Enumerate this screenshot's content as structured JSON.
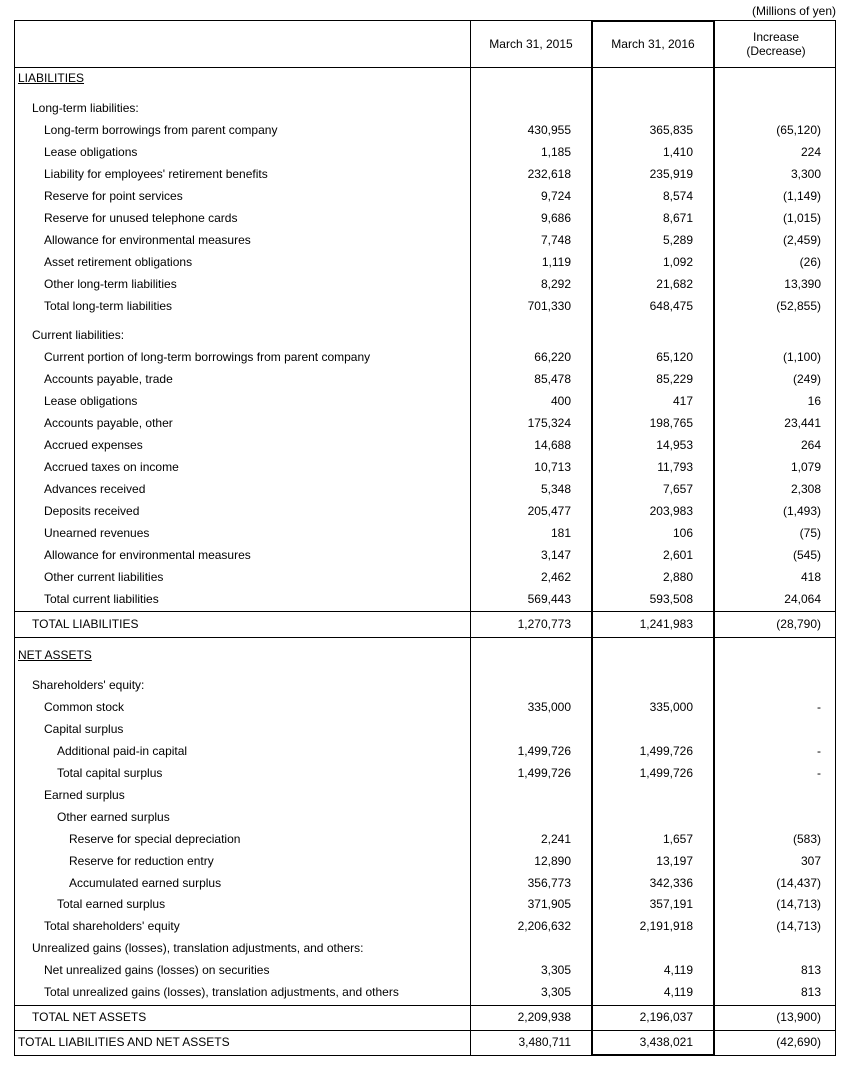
{
  "unit_note": "(Millions of yen)",
  "table": {
    "header": [
      "March 31, 2015",
      "March 31, 2016",
      [
        "Increase",
        "(Decrease)"
      ]
    ],
    "rows": [
      {
        "label": "LIABILITIES"
      },
      {
        "label": "Long-term liabilities:"
      },
      {
        "label": "Long-term borrowings from parent company",
        "values": [
          "430,955",
          "365,835",
          "(65,120)"
        ]
      },
      {
        "label": "Lease obligations",
        "values": [
          "1,185",
          "1,410",
          "224"
        ]
      },
      {
        "label": "Liability for employees' retirement benefits",
        "values": [
          "232,618",
          "235,919",
          "3,300"
        ]
      },
      {
        "label": "Reserve for point services",
        "values": [
          "9,724",
          "8,574",
          "(1,149)"
        ]
      },
      {
        "label": "Reserve for unused telephone cards",
        "values": [
          "9,686",
          "8,671",
          "(1,015)"
        ]
      },
      {
        "label": "Allowance for environmental measures",
        "values": [
          "7,748",
          "5,289",
          "(2,459)"
        ]
      },
      {
        "label": "Asset retirement obligations",
        "values": [
          "1,119",
          "1,092",
          "(26)"
        ]
      },
      {
        "label": "Other long-term liabilities",
        "values": [
          "8,292",
          "21,682",
          "13,390"
        ]
      },
      {
        "label": "Total long-term liabilities",
        "values": [
          "701,330",
          "648,475",
          "(52,855)"
        ]
      },
      {
        "label": "Current liabilities:"
      },
      {
        "label": "Current portion of long-term borrowings from parent company",
        "values": [
          "66,220",
          "65,120",
          "(1,100)"
        ]
      },
      {
        "label": "Accounts payable, trade",
        "values": [
          "85,478",
          "85,229",
          "(249)"
        ]
      },
      {
        "label": "Lease obligations",
        "values": [
          "400",
          "417",
          "16"
        ]
      },
      {
        "label": "Accounts payable, other",
        "values": [
          "175,324",
          "198,765",
          "23,441"
        ]
      },
      {
        "label": "Accrued expenses",
        "values": [
          "14,688",
          "14,953",
          "264"
        ]
      },
      {
        "label": "Accrued taxes on income",
        "values": [
          "10,713",
          "11,793",
          "1,079"
        ]
      },
      {
        "label": "Advances received",
        "values": [
          "5,348",
          "7,657",
          "2,308"
        ]
      },
      {
        "label": "Deposits received",
        "values": [
          "205,477",
          "203,983",
          "(1,493)"
        ]
      },
      {
        "label": "Unearned revenues",
        "values": [
          "181",
          "106",
          "(75)"
        ]
      },
      {
        "label": "Allowance for environmental measures",
        "values": [
          "3,147",
          "2,601",
          "(545)"
        ]
      },
      {
        "label": "Other current liabilities",
        "values": [
          "2,462",
          "2,880",
          "418"
        ]
      },
      {
        "label": "Total current liabilities",
        "values": [
          "569,443",
          "593,508",
          "24,064"
        ]
      },
      {
        "label": "TOTAL LIABILITIES",
        "values": [
          "1,270,773",
          "1,241,983",
          "(28,790)"
        ]
      },
      {
        "label": "NET ASSETS"
      },
      {
        "label": "Shareholders' equity:"
      },
      {
        "label": "Common stock",
        "values": [
          "335,000",
          "335,000",
          "-"
        ]
      },
      {
        "label": "Capital surplus"
      },
      {
        "label": "Additional paid-in capital",
        "values": [
          "1,499,726",
          "1,499,726",
          "-"
        ]
      },
      {
        "label": "Total capital surplus",
        "values": [
          "1,499,726",
          "1,499,726",
          "-"
        ]
      },
      {
        "label": "Earned surplus"
      },
      {
        "label": "Other earned surplus"
      },
      {
        "label": "Reserve for special depreciation",
        "values": [
          "2,241",
          "1,657",
          "(583)"
        ]
      },
      {
        "label": "Reserve for reduction entry",
        "values": [
          "12,890",
          "13,197",
          "307"
        ]
      },
      {
        "label": "Accumulated earned surplus",
        "values": [
          "356,773",
          "342,336",
          "(14,437)"
        ]
      },
      {
        "label": "Total earned surplus",
        "values": [
          "371,905",
          "357,191",
          "(14,713)"
        ]
      },
      {
        "label": "Total shareholders' equity",
        "values": [
          "2,206,632",
          "2,191,918",
          "(14,713)"
        ]
      },
      {
        "label": "Unrealized gains (losses), translation adjustments, and others:"
      },
      {
        "label": "Net unrealized gains (losses) on securities",
        "values": [
          "3,305",
          "4,119",
          "813"
        ]
      },
      {
        "label": "Total unrealized gains (losses), translation adjustments, and others",
        "values": [
          "3,305",
          "4,119",
          "813"
        ]
      },
      {
        "label": "TOTAL NET ASSETS",
        "values": [
          "2,209,938",
          "2,196,037",
          "(13,900)"
        ]
      },
      {
        "label": "TOTAL LIABILITIES AND NET ASSETS",
        "values": [
          "3,480,711",
          "3,438,021",
          "(42,690)"
        ]
      }
    ]
  }
}
